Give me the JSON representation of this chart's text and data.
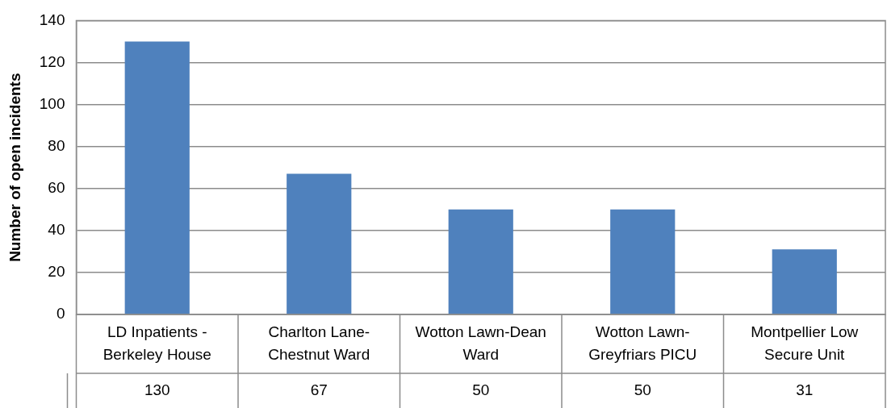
{
  "chart_data": {
    "type": "bar",
    "ylabel": "Number of open incidents",
    "categories": [
      "LD Inpatients - Berkeley House",
      "Charlton Lane-Chestnut Ward",
      "Wotton Lawn-Dean Ward",
      "Wotton Lawn-Greyfriars PICU",
      "Montpellier Low Secure Unit"
    ],
    "values": [
      130,
      67,
      50,
      50,
      31
    ],
    "color": "#4f81bd",
    "ylim": [
      0,
      140
    ],
    "yticks": [
      0,
      20,
      40,
      60,
      80,
      100,
      120,
      140
    ],
    "grid": "y",
    "data_labels": true
  }
}
